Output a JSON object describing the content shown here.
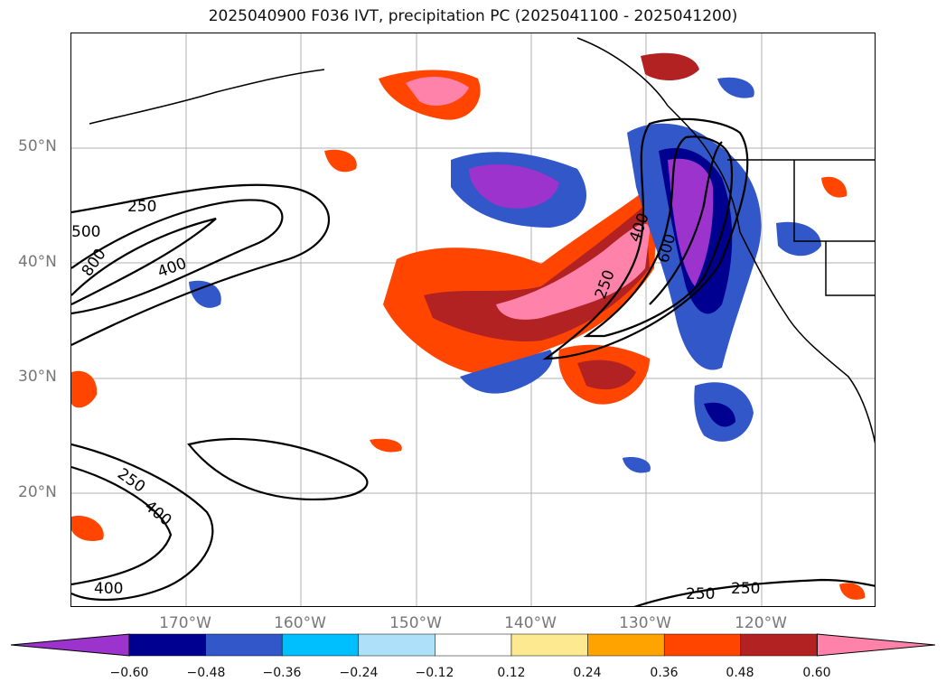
{
  "title": "2025040900 F036 IVT, precipitation PC (2025041100 - 2025041200)",
  "latitude_labels": [
    "50°N",
    "40°N",
    "30°N",
    "20°N"
  ],
  "longitude_labels": [
    "170°W",
    "160°W",
    "150°W",
    "140°W",
    "130°W",
    "120°W"
  ],
  "contour_labels": [
    "250",
    "500",
    "800",
    "400",
    "250",
    "400",
    "250",
    "600",
    "250",
    "400",
    "400",
    "250"
  ],
  "colorbar": {
    "ticks": [
      "−0.60",
      "−0.48",
      "−0.36",
      "−0.24",
      "−0.12",
      "0.12",
      "0.24",
      "0.36",
      "0.48",
      "0.60"
    ],
    "colors": [
      "#9b33cc",
      "#000090",
      "#3157c9",
      "#00bfff",
      "#aee0fa",
      "#ffffff",
      "#fce990",
      "#ffa300",
      "#ff4500",
      "#b22222",
      "#ff82ab"
    ],
    "extend": "both"
  }
}
